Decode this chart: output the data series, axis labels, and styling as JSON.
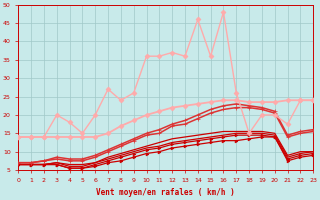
{
  "xlabel": "Vent moyen/en rafales ( km/h )",
  "xlim": [
    0,
    23
  ],
  "ylim": [
    5,
    50
  ],
  "yticks": [
    5,
    10,
    15,
    20,
    25,
    30,
    35,
    40,
    45,
    50
  ],
  "xticks": [
    0,
    1,
    2,
    3,
    4,
    5,
    6,
    7,
    8,
    9,
    10,
    11,
    12,
    13,
    14,
    15,
    16,
    17,
    18,
    19,
    20,
    21,
    22,
    23
  ],
  "background_color": "#c8eaea",
  "grid_color": "#a0c8c8",
  "lines": [
    {
      "x": [
        0,
        1,
        2,
        3,
        4,
        5,
        6,
        7,
        8,
        9,
        10,
        11,
        12,
        13,
        14,
        15,
        16,
        17,
        18,
        19,
        20,
        21,
        22,
        23
      ],
      "y": [
        6.5,
        6.5,
        6.5,
        6.5,
        5.5,
        5.5,
        6.0,
        7.0,
        7.5,
        8.5,
        9.5,
        10.0,
        11.0,
        11.5,
        12.0,
        12.5,
        13.0,
        13.0,
        13.5,
        14.0,
        14.0,
        7.5,
        8.5,
        9.0
      ],
      "color": "#cc0000",
      "linewidth": 0.9,
      "marker": ">",
      "markersize": 2.0
    },
    {
      "x": [
        0,
        1,
        2,
        3,
        4,
        5,
        6,
        7,
        8,
        9,
        10,
        11,
        12,
        13,
        14,
        15,
        16,
        17,
        18,
        19,
        20,
        21,
        22,
        23
      ],
      "y": [
        6.5,
        6.5,
        6.5,
        6.5,
        5.5,
        5.5,
        6.5,
        7.5,
        8.5,
        9.5,
        10.5,
        11.0,
        12.0,
        12.5,
        13.0,
        13.5,
        14.0,
        14.5,
        14.5,
        14.5,
        14.0,
        8.0,
        9.0,
        9.5
      ],
      "color": "#cc0000",
      "linewidth": 0.9,
      "marker": ">",
      "markersize": 2.0
    },
    {
      "x": [
        0,
        1,
        2,
        3,
        4,
        5,
        6,
        7,
        8,
        9,
        10,
        11,
        12,
        13,
        14,
        15,
        16,
        17,
        18,
        19,
        20,
        21,
        22,
        23
      ],
      "y": [
        6.5,
        6.5,
        6.5,
        7.0,
        6.5,
        6.5,
        7.0,
        8.0,
        9.0,
        10.0,
        11.0,
        11.5,
        12.5,
        13.0,
        13.5,
        14.0,
        14.5,
        15.0,
        15.0,
        15.0,
        14.5,
        8.5,
        9.5,
        10.0
      ],
      "color": "#cc0000",
      "linewidth": 0.9,
      "marker": null,
      "markersize": 0
    },
    {
      "x": [
        0,
        1,
        2,
        3,
        4,
        5,
        6,
        7,
        8,
        9,
        10,
        11,
        12,
        13,
        14,
        15,
        16,
        17,
        18,
        19,
        20,
        21,
        22,
        23
      ],
      "y": [
        6.5,
        6.5,
        6.5,
        7.0,
        6.0,
        6.0,
        7.0,
        8.5,
        9.5,
        10.5,
        11.5,
        12.5,
        13.5,
        14.0,
        14.5,
        15.0,
        15.5,
        15.5,
        15.5,
        15.5,
        15.0,
        9.0,
        10.0,
        10.0
      ],
      "color": "#cc0000",
      "linewidth": 0.9,
      "marker": null,
      "markersize": 0
    },
    {
      "x": [
        0,
        1,
        2,
        3,
        4,
        5,
        6,
        7,
        8,
        9,
        10,
        11,
        12,
        13,
        14,
        15,
        16,
        17,
        18,
        19,
        20,
        21,
        22,
        23
      ],
      "y": [
        7.0,
        7.0,
        7.5,
        8.5,
        8.0,
        8.0,
        9.0,
        10.5,
        12.0,
        13.5,
        15.0,
        16.0,
        17.5,
        18.5,
        20.0,
        21.5,
        22.5,
        23.0,
        22.5,
        22.0,
        21.0,
        14.5,
        15.5,
        16.0
      ],
      "color": "#dd3333",
      "linewidth": 1.1,
      "marker": "+",
      "markersize": 3.0
    },
    {
      "x": [
        0,
        1,
        2,
        3,
        4,
        5,
        6,
        7,
        8,
        9,
        10,
        11,
        12,
        13,
        14,
        15,
        16,
        17,
        18,
        19,
        20,
        21,
        22,
        23
      ],
      "y": [
        7.0,
        7.0,
        7.5,
        8.0,
        7.5,
        7.5,
        8.5,
        10.0,
        11.5,
        13.0,
        14.5,
        15.0,
        17.0,
        17.5,
        19.0,
        20.5,
        21.5,
        22.0,
        22.0,
        21.5,
        20.5,
        14.0,
        15.0,
        15.5
      ],
      "color": "#dd3333",
      "linewidth": 1.1,
      "marker": "+",
      "markersize": 3.0
    },
    {
      "x": [
        0,
        1,
        2,
        3,
        4,
        5,
        6,
        7,
        8,
        9,
        10,
        11,
        12,
        13,
        14,
        15,
        16,
        17,
        18,
        19,
        20,
        21,
        22,
        23
      ],
      "y": [
        14.0,
        14.0,
        14.0,
        14.0,
        14.0,
        14.0,
        14.0,
        15.0,
        17.0,
        18.5,
        20.0,
        21.0,
        22.0,
        22.5,
        23.0,
        23.5,
        24.0,
        24.0,
        23.5,
        23.5,
        23.5,
        24.0,
        24.0,
        24.0
      ],
      "color": "#ffaaaa",
      "linewidth": 1.3,
      "marker": "D",
      "markersize": 2.5
    },
    {
      "x": [
        0,
        1,
        2,
        3,
        4,
        5,
        6,
        7,
        8,
        9,
        10,
        11,
        12,
        13,
        14,
        15,
        16,
        17,
        18,
        19,
        20,
        21,
        22,
        23
      ],
      "y": [
        14.0,
        14.0,
        14.0,
        20.0,
        18.0,
        15.0,
        20.0,
        27.0,
        24.0,
        26.0,
        36.0,
        36.0,
        37.0,
        36.0,
        46.0,
        36.0,
        48.0,
        26.0,
        15.0,
        20.0,
        20.0,
        17.5,
        24.0,
        24.0
      ],
      "color": "#ffaaaa",
      "linewidth": 1.0,
      "marker": "D",
      "markersize": 2.5
    }
  ]
}
